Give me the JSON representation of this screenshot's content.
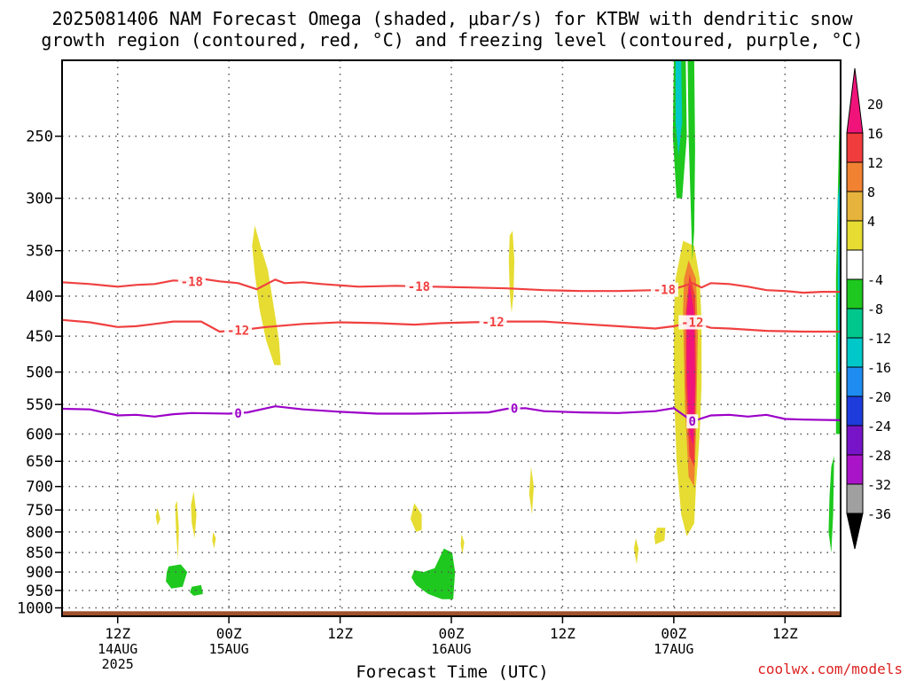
{
  "title": {
    "line1": "2025081406 NAM Forecast Omega (shaded, μbar/s) for KTBW with dendritic snow",
    "line2": "growth region (contoured, red, °C) and freezing level (contoured, purple, °C)"
  },
  "credit": "coolwx.com/models",
  "colors": {
    "isotherm": "#f04040",
    "freezing_level": "#9c00c8",
    "ground": "#a0522d",
    "grid": "#555555"
  },
  "chart_data": {
    "type": "heatmap",
    "xlabel": "Forecast Time (UTC)",
    "x_ticks": [
      {
        "hour": 6,
        "label": "12Z",
        "sub": "14AUG",
        "sub2": "2025"
      },
      {
        "hour": 18,
        "label": "00Z",
        "sub": "15AUG",
        "sub2": ""
      },
      {
        "hour": 30,
        "label": "12Z",
        "sub": "",
        "sub2": ""
      },
      {
        "hour": 42,
        "label": "00Z",
        "sub": "16AUG",
        "sub2": ""
      },
      {
        "hour": 54,
        "label": "12Z",
        "sub": "",
        "sub2": ""
      },
      {
        "hour": 66,
        "label": "00Z",
        "sub": "17AUG",
        "sub2": ""
      },
      {
        "hour": 78,
        "label": "12Z",
        "sub": "",
        "sub2": ""
      }
    ],
    "x_range_hours": [
      0,
      84
    ],
    "y_scale": "log",
    "y_range_hpa": [
      1025,
      200
    ],
    "y_ticks": [
      250,
      300,
      350,
      400,
      450,
      500,
      550,
      600,
      650,
      700,
      750,
      800,
      850,
      900,
      950,
      1000
    ],
    "grid": true,
    "colorbar": {
      "ticks": [
        20,
        16,
        12,
        8,
        4,
        -4,
        -8,
        -12,
        -16,
        -20,
        -24,
        -28,
        -32,
        -36
      ],
      "bins": [
        {
          "from": 20,
          "to": 24,
          "color": "#f0147a"
        },
        {
          "from": 16,
          "to": 20,
          "color": "#f03c3c"
        },
        {
          "from": 12,
          "to": 16,
          "color": "#f08232"
        },
        {
          "from": 8,
          "to": 12,
          "color": "#e6b43c"
        },
        {
          "from": 4,
          "to": 8,
          "color": "#e6dc32"
        },
        {
          "from": -4,
          "to": 4,
          "color": "#ffffff"
        },
        {
          "from": -8,
          "to": -4,
          "color": "#1ec81e"
        },
        {
          "from": -12,
          "to": -8,
          "color": "#00c88c"
        },
        {
          "from": -16,
          "to": -12,
          "color": "#00c8c8"
        },
        {
          "from": -20,
          "to": -16,
          "color": "#1e8cf0"
        },
        {
          "from": -24,
          "to": -20,
          "color": "#1e3cdc"
        },
        {
          "from": -28,
          "to": -24,
          "color": "#7814c8"
        },
        {
          "from": -32,
          "to": -28,
          "color": "#aa14c8"
        },
        {
          "from": -36,
          "to": -32,
          "color": "#a0a0a0"
        }
      ]
    },
    "isotherms": [
      {
        "label": "-18",
        "color": "#f04040",
        "points": [
          [
            0,
            384
          ],
          [
            3,
            386
          ],
          [
            6,
            389
          ],
          [
            8,
            387
          ],
          [
            10,
            386
          ],
          [
            12,
            382
          ],
          [
            14,
            383
          ],
          [
            15,
            380
          ],
          [
            17,
            383
          ],
          [
            19,
            385
          ],
          [
            21,
            392
          ],
          [
            23,
            381
          ],
          [
            24,
            385
          ],
          [
            26,
            384
          ],
          [
            28,
            386
          ],
          [
            32,
            389
          ],
          [
            36,
            388
          ],
          [
            40,
            389
          ],
          [
            44,
            390
          ],
          [
            48,
            391
          ],
          [
            52,
            393
          ],
          [
            56,
            394
          ],
          [
            60,
            394
          ],
          [
            64,
            393
          ],
          [
            66,
            392
          ],
          [
            68,
            385
          ],
          [
            69,
            390
          ],
          [
            70,
            385
          ],
          [
            72,
            386
          ],
          [
            74,
            389
          ],
          [
            76,
            393
          ],
          [
            78,
            394
          ],
          [
            80,
            396
          ],
          [
            82,
            395
          ],
          [
            84,
            395
          ]
        ],
        "labels_at": [
          14,
          38.5,
          65
        ]
      },
      {
        "label": "-12",
        "color": "#f04040",
        "points": [
          [
            0,
            429
          ],
          [
            3,
            432
          ],
          [
            6,
            438
          ],
          [
            8,
            437
          ],
          [
            10,
            434
          ],
          [
            12,
            431
          ],
          [
            15,
            431
          ],
          [
            17,
            444
          ],
          [
            20,
            441
          ],
          [
            22,
            438
          ],
          [
            26,
            434
          ],
          [
            30,
            432
          ],
          [
            34,
            433
          ],
          [
            38,
            435
          ],
          [
            41,
            433
          ],
          [
            44,
            432
          ],
          [
            48,
            431
          ],
          [
            52,
            431
          ],
          [
            56,
            434
          ],
          [
            60,
            437
          ],
          [
            64,
            440
          ],
          [
            66,
            437
          ],
          [
            68,
            432
          ],
          [
            70,
            439
          ],
          [
            72,
            440
          ],
          [
            76,
            443
          ],
          [
            80,
            444
          ],
          [
            84,
            444
          ]
        ],
        "labels_at": [
          19,
          46.5,
          68
        ]
      },
      {
        "label": "0",
        "color": "#9c00c8",
        "points": [
          [
            0,
            557
          ],
          [
            3,
            558
          ],
          [
            6,
            568
          ],
          [
            8,
            567
          ],
          [
            10,
            570
          ],
          [
            12,
            566
          ],
          [
            14,
            564
          ],
          [
            18,
            565
          ],
          [
            20,
            563
          ],
          [
            23,
            553
          ],
          [
            26,
            558
          ],
          [
            30,
            562
          ],
          [
            34,
            565
          ],
          [
            38,
            565
          ],
          [
            42,
            564
          ],
          [
            46,
            563
          ],
          [
            48,
            557
          ],
          [
            50,
            556
          ],
          [
            52,
            561
          ],
          [
            56,
            563
          ],
          [
            60,
            564
          ],
          [
            64,
            561
          ],
          [
            66,
            556
          ],
          [
            68,
            578
          ],
          [
            70,
            568
          ],
          [
            72,
            567
          ],
          [
            74,
            570
          ],
          [
            76,
            567
          ],
          [
            78,
            574
          ],
          [
            80,
            575
          ],
          [
            84,
            576
          ]
        ],
        "labels_at": [
          19,
          48.8,
          68
        ]
      }
    ],
    "omega_features": [
      {
        "color": "#e6dc32",
        "points": [
          [
            20.8,
            325
          ],
          [
            21.4,
            345
          ],
          [
            22.2,
            370
          ],
          [
            22.8,
            410
          ],
          [
            23.4,
            455
          ],
          [
            23.6,
            490
          ],
          [
            22.9,
            490
          ],
          [
            22.0,
            455
          ],
          [
            21.3,
            415
          ],
          [
            20.8,
            375
          ],
          [
            20.5,
            345
          ]
        ]
      },
      {
        "color": "#e6dc32",
        "points": [
          [
            48.6,
            330
          ],
          [
            48.8,
            360
          ],
          [
            48.7,
            400
          ],
          [
            48.5,
            420
          ],
          [
            48.3,
            395
          ],
          [
            48.2,
            360
          ],
          [
            48.3,
            335
          ]
        ]
      },
      {
        "color": "#e6dc32",
        "points": [
          [
            67.0,
            340
          ],
          [
            68.2,
            345
          ],
          [
            68.8,
            380
          ],
          [
            69.0,
            430
          ],
          [
            69.0,
            520
          ],
          [
            68.8,
            600
          ],
          [
            68.4,
            700
          ],
          [
            68.2,
            780
          ],
          [
            67.4,
            810
          ],
          [
            66.8,
            760
          ],
          [
            66.3,
            650
          ],
          [
            66.0,
            520
          ],
          [
            66.0,
            420
          ],
          [
            66.2,
            380
          ]
        ]
      },
      {
        "color": "#f08232",
        "points": [
          [
            67.6,
            360
          ],
          [
            68.4,
            380
          ],
          [
            68.6,
            450
          ],
          [
            68.4,
            600
          ],
          [
            68.2,
            700
          ],
          [
            67.6,
            680
          ],
          [
            67.2,
            550
          ],
          [
            67.0,
            420
          ],
          [
            67.1,
            380
          ]
        ]
      },
      {
        "color": "#f03c3c",
        "points": [
          [
            67.7,
            375
          ],
          [
            68.3,
            400
          ],
          [
            68.4,
            500
          ],
          [
            68.2,
            660
          ],
          [
            67.7,
            640
          ],
          [
            67.3,
            520
          ],
          [
            67.3,
            420
          ]
        ]
      },
      {
        "color": "#f0147a",
        "points": [
          [
            67.7,
            385
          ],
          [
            68.2,
            420
          ],
          [
            68.3,
            520
          ],
          [
            68.1,
            620
          ],
          [
            67.7,
            600
          ],
          [
            67.4,
            500
          ],
          [
            67.4,
            420
          ]
        ]
      },
      {
        "color": "#1ec81e",
        "points": [
          [
            66.0,
            200
          ],
          [
            67.3,
            200
          ],
          [
            67.4,
            250
          ],
          [
            66.9,
            300
          ],
          [
            66.3,
            300
          ],
          [
            65.9,
            250
          ]
        ]
      },
      {
        "color": "#00c8c8",
        "points": [
          [
            66.2,
            200
          ],
          [
            66.8,
            200
          ],
          [
            66.9,
            240
          ],
          [
            66.5,
            265
          ],
          [
            66.2,
            240
          ]
        ]
      },
      {
        "color": "#1ec81e",
        "points": [
          [
            67.5,
            200
          ],
          [
            68.2,
            200
          ],
          [
            68.3,
            260
          ],
          [
            68.2,
            330
          ],
          [
            68.0,
            360
          ],
          [
            67.8,
            300
          ],
          [
            67.6,
            250
          ]
        ]
      },
      {
        "color": "#1ec81e",
        "points": [
          [
            11.5,
            885
          ],
          [
            12.8,
            880
          ],
          [
            13.5,
            900
          ],
          [
            13.0,
            940
          ],
          [
            11.8,
            945
          ],
          [
            11.2,
            925
          ],
          [
            11.3,
            900
          ]
        ]
      },
      {
        "color": "#1ec81e",
        "points": [
          [
            14.0,
            940
          ],
          [
            15.0,
            935
          ],
          [
            15.2,
            960
          ],
          [
            14.2,
            965
          ],
          [
            13.8,
            955
          ]
        ]
      },
      {
        "color": "#1ec81e",
        "points": [
          [
            38.0,
            895
          ],
          [
            39.0,
            900
          ],
          [
            40.2,
            890
          ],
          [
            41.2,
            840
          ],
          [
            42.1,
            850
          ],
          [
            42.4,
            900
          ],
          [
            42.2,
            975
          ],
          [
            41.0,
            975
          ],
          [
            39.5,
            960
          ],
          [
            38.2,
            935
          ],
          [
            37.7,
            915
          ]
        ]
      },
      {
        "color": "#e6dc32",
        "points": [
          [
            38.0,
            735
          ],
          [
            38.8,
            760
          ],
          [
            38.8,
            795
          ],
          [
            38.2,
            800
          ],
          [
            37.6,
            770
          ]
        ]
      },
      {
        "color": "#e6dc32",
        "points": [
          [
            12.4,
            730
          ],
          [
            12.6,
            790
          ],
          [
            12.5,
            870
          ],
          [
            12.3,
            800
          ],
          [
            12.2,
            740
          ]
        ]
      },
      {
        "color": "#e6dc32",
        "points": [
          [
            14.2,
            710
          ],
          [
            14.5,
            760
          ],
          [
            14.3,
            815
          ],
          [
            14.0,
            780
          ],
          [
            13.9,
            740
          ]
        ]
      },
      {
        "color": "#e6dc32",
        "points": [
          [
            10.3,
            745
          ],
          [
            10.6,
            770
          ],
          [
            10.3,
            785
          ],
          [
            10.1,
            765
          ]
        ]
      },
      {
        "color": "#e6dc32",
        "points": [
          [
            16.3,
            800
          ],
          [
            16.6,
            815
          ],
          [
            16.4,
            840
          ],
          [
            16.2,
            820
          ]
        ]
      },
      {
        "color": "#e6dc32",
        "points": [
          [
            50.6,
            660
          ],
          [
            50.9,
            700
          ],
          [
            50.7,
            760
          ],
          [
            50.4,
            715
          ]
        ]
      },
      {
        "color": "#e6dc32",
        "points": [
          [
            43.1,
            805
          ],
          [
            43.4,
            825
          ],
          [
            43.2,
            855
          ],
          [
            43.0,
            830
          ]
        ]
      },
      {
        "color": "#e6dc32",
        "points": [
          [
            64.2,
            790
          ],
          [
            65.1,
            790
          ],
          [
            65.0,
            820
          ],
          [
            64.0,
            830
          ],
          [
            63.9,
            810
          ]
        ]
      },
      {
        "color": "#e6dc32",
        "points": [
          [
            61.9,
            815
          ],
          [
            62.2,
            840
          ],
          [
            62.0,
            880
          ],
          [
            61.7,
            840
          ]
        ]
      },
      {
        "color": "#1ec81e",
        "points": [
          [
            83.5,
            380
          ],
          [
            84.0,
            200
          ],
          [
            84.0,
            600
          ],
          [
            83.5,
            600
          ]
        ]
      },
      {
        "color": "#00c8c8",
        "points": [
          [
            83.7,
            300
          ],
          [
            84.0,
            280
          ],
          [
            84.0,
            500
          ],
          [
            83.7,
            500
          ]
        ]
      },
      {
        "color": "#1ec81e",
        "points": [
          [
            83.0,
            660
          ],
          [
            83.3,
            640
          ],
          [
            83.2,
            760
          ],
          [
            83.0,
            850
          ],
          [
            82.7,
            800
          ],
          [
            82.8,
            720
          ]
        ]
      }
    ]
  }
}
